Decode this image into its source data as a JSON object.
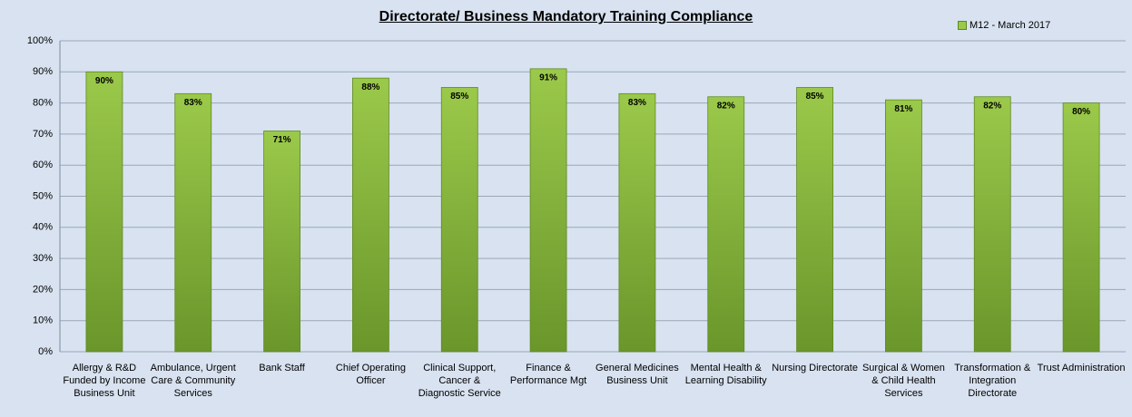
{
  "chart_data": {
    "type": "bar",
    "title": "Directorate/ Business Mandatory Training Compliance",
    "categories": [
      "Allergy & R&D Funded by Income Business Unit",
      "Ambulance, Urgent Care & Community Services",
      "Bank Staff",
      "Chief Operating Officer",
      "Clinical Support, Cancer & Diagnostic Service",
      "Finance & Performance Mgt",
      "General Medicines Business Unit",
      "Mental Health & Learning Disability",
      "Nursing Directorate",
      "Surgical & Women & Child Health Services",
      "Transformation & Integration Directorate",
      "Trust Administration"
    ],
    "series": [
      {
        "name": "M12 - March 2017",
        "color": "#9bc94a",
        "values": [
          90,
          83,
          71,
          88,
          85,
          91,
          83,
          82,
          85,
          81,
          82,
          80
        ],
        "value_labels": [
          "90%",
          "83%",
          "71%",
          "88%",
          "85%",
          "91%",
          "83%",
          "82%",
          "85%",
          "81%",
          "82%",
          "80%"
        ]
      }
    ],
    "ylim": [
      0,
      100
    ],
    "yticks": [
      {
        "value": 0,
        "label": "0%"
      },
      {
        "value": 10,
        "label": "10%"
      },
      {
        "value": 20,
        "label": "20%"
      },
      {
        "value": 30,
        "label": "30%"
      },
      {
        "value": 40,
        "label": "40%"
      },
      {
        "value": 50,
        "label": "50%"
      },
      {
        "value": 60,
        "label": "60%"
      },
      {
        "value": 70,
        "label": "70%"
      },
      {
        "value": 80,
        "label": "80%"
      },
      {
        "value": 90,
        "label": "90%"
      },
      {
        "value": 100,
        "label": "100%"
      }
    ],
    "grid": true,
    "legend": "top-right"
  }
}
